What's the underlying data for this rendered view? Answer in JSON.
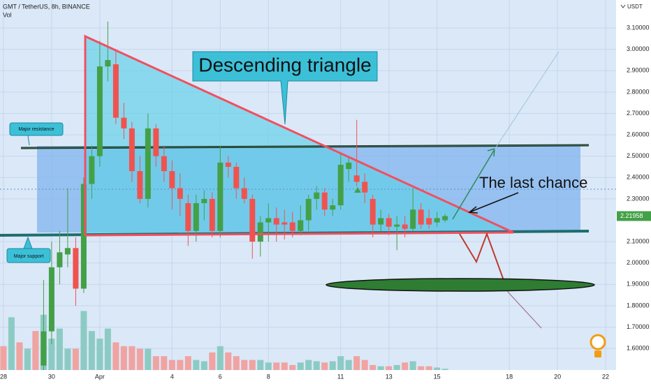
{
  "chart_data": {
    "type": "candlestick",
    "title": "GMT / TetherUS, 8h, BINANCE",
    "volume_label": "Vol",
    "currency": "USDT",
    "annotations": {
      "pattern": "Descending triangle",
      "last_chance": "The last chance",
      "resistance": "Major resistance",
      "support": "Major support"
    },
    "xlim": [
      -0.43,
      76.3
    ],
    "xticks": [
      {
        "value": 0,
        "label": "28"
      },
      {
        "value": 6,
        "label": "30"
      },
      {
        "value": 12,
        "label": "Apr"
      },
      {
        "value": 21,
        "label": "4"
      },
      {
        "value": 27,
        "label": "6"
      },
      {
        "value": 33,
        "label": "8"
      },
      {
        "value": 42,
        "label": "11"
      },
      {
        "value": 48,
        "label": "13"
      },
      {
        "value": 54,
        "label": "15"
      },
      {
        "value": 63,
        "label": "18"
      },
      {
        "value": 69,
        "label": "20"
      },
      {
        "value": 75,
        "label": "22"
      }
    ],
    "ylim": [
      1.499,
      3.231
    ],
    "yticks": [
      {
        "value": 1.6,
        "label": "1.60000"
      },
      {
        "value": 1.7,
        "label": "1.70000"
      },
      {
        "value": 1.8,
        "label": "1.80000"
      },
      {
        "value": 1.9,
        "label": "1.90000"
      },
      {
        "value": 2.0,
        "label": "2.00000"
      },
      {
        "value": 2.1,
        "label": "2.10000"
      },
      {
        "value": 2.3,
        "label": "2.30000"
      },
      {
        "value": 2.4,
        "label": "2.40000"
      },
      {
        "value": 2.5,
        "label": "2.50000"
      },
      {
        "value": 2.6,
        "label": "2.60000"
      },
      {
        "value": 2.7,
        "label": "2.70000"
      },
      {
        "value": 2.8,
        "label": "2.80000"
      },
      {
        "value": 2.9,
        "label": "2.90000"
      },
      {
        "value": 3.0,
        "label": "3.00000"
      },
      {
        "value": 3.1,
        "label": "3.10000"
      }
    ],
    "grid": true,
    "up_color": "#43a047",
    "down_color": "#ef5350",
    "x": [
      5,
      6,
      7,
      8,
      9,
      10,
      11,
      12,
      13,
      14,
      15,
      16,
      17,
      18,
      19,
      20,
      21,
      22,
      23,
      24,
      25,
      26,
      27,
      28,
      29,
      30,
      31,
      32,
      33,
      34,
      35,
      36,
      37,
      38,
      39,
      40,
      41,
      42,
      43,
      44,
      45,
      46,
      47,
      48,
      49,
      50,
      51,
      52,
      53,
      54,
      55
    ],
    "open": [
      1.52,
      1.68,
      1.98,
      2.04,
      2.07,
      1.88,
      2.37,
      2.5,
      2.92,
      2.93,
      2.68,
      2.63,
      2.43,
      2.3,
      2.63,
      2.5,
      2.43,
      2.35,
      2.28,
      2.15,
      2.28,
      2.3,
      2.15,
      2.47,
      2.45,
      2.35,
      2.3,
      2.1,
      2.19,
      2.21,
      2.19,
      2.19,
      2.15,
      2.2,
      2.3,
      2.33,
      2.25,
      2.27,
      2.44,
      2.41,
      2.38,
      2.3,
      2.18,
      2.21,
      2.17,
      2.18,
      2.16,
      2.25,
      2.21,
      2.19,
      2.2
    ],
    "high": [
      1.92,
      2.1,
      2.15,
      2.35,
      2.12,
      2.4,
      2.55,
      3.04,
      3.13,
      3.0,
      2.75,
      2.66,
      2.5,
      2.7,
      2.65,
      2.55,
      2.48,
      2.42,
      2.32,
      2.32,
      2.34,
      2.33,
      2.55,
      2.5,
      2.47,
      2.4,
      2.32,
      2.22,
      2.28,
      2.26,
      2.25,
      2.24,
      2.27,
      2.32,
      2.36,
      2.35,
      2.3,
      2.52,
      2.5,
      2.67,
      2.42,
      2.32,
      2.25,
      2.23,
      2.22,
      2.22,
      2.35,
      2.28,
      2.25,
      2.24,
      2.23
    ],
    "low": [
      1.45,
      1.62,
      1.9,
      1.98,
      1.8,
      1.86,
      2.3,
      2.45,
      2.85,
      2.65,
      2.58,
      2.38,
      2.28,
      2.26,
      2.45,
      2.38,
      2.25,
      2.22,
      2.08,
      2.1,
      2.2,
      2.12,
      2.12,
      2.4,
      2.3,
      2.28,
      2.02,
      2.03,
      2.1,
      2.1,
      2.11,
      2.12,
      2.13,
      2.15,
      2.25,
      2.22,
      2.22,
      2.25,
      2.38,
      2.36,
      2.28,
      2.12,
      2.15,
      2.13,
      2.06,
      2.12,
      2.15,
      2.16,
      2.16,
      2.17,
      2.19
    ],
    "close": [
      1.68,
      1.98,
      2.05,
      2.07,
      1.88,
      2.37,
      2.5,
      2.92,
      2.95,
      2.68,
      2.63,
      2.43,
      2.3,
      2.63,
      2.5,
      2.43,
      2.35,
      2.3,
      2.15,
      2.28,
      2.3,
      2.15,
      2.47,
      2.45,
      2.35,
      2.3,
      2.1,
      2.19,
      2.21,
      2.18,
      2.18,
      2.15,
      2.2,
      2.3,
      2.33,
      2.25,
      2.27,
      2.46,
      2.47,
      2.38,
      2.33,
      2.18,
      2.21,
      2.17,
      2.18,
      2.16,
      2.25,
      2.18,
      2.18,
      2.21,
      2.21958
    ],
    "volume": {
      "x": [
        0,
        1,
        2,
        3,
        4,
        5,
        6,
        7,
        8,
        9,
        10,
        11,
        12,
        13,
        14,
        15,
        16,
        17,
        18,
        19,
        20,
        21,
        22,
        23,
        24,
        25,
        26,
        27,
        28,
        29,
        30,
        31,
        32,
        33,
        34,
        35,
        36,
        37,
        38,
        39,
        40,
        41,
        42,
        43,
        44,
        45,
        46,
        47,
        48,
        49,
        50,
        51,
        52,
        53,
        54,
        55
      ],
      "vlim": [
        0,
        100
      ],
      "values": [
        19,
        42,
        22,
        17,
        31,
        44,
        25,
        33,
        17,
        17,
        47,
        31,
        25,
        33,
        22,
        19,
        19,
        17,
        17,
        11,
        11,
        8,
        8,
        11,
        8,
        7,
        14,
        19,
        14,
        11,
        8,
        8,
        8,
        6,
        6,
        6,
        4,
        6,
        8,
        7,
        6,
        7,
        11,
        8,
        11,
        8,
        4,
        3,
        3,
        4,
        6,
        7,
        3,
        3,
        2,
        1
      ],
      "colors": [
        "#f0a3a1",
        "#8ccbc4",
        "#f0a3a1",
        "#8ccbc4",
        "#f0a3a1",
        "#8ccbc4",
        "#8ccbc4",
        "#8ccbc4",
        "#8ccbc4",
        "#f0a3a1",
        "#8ccbc4",
        "#8ccbc4",
        "#8ccbc4",
        "#8ccbc4",
        "#f0a3a1",
        "#f0a3a1",
        "#f0a3a1",
        "#f0a3a1",
        "#8ccbc4",
        "#f0a3a1",
        "#f0a3a1",
        "#f0a3a1",
        "#f0a3a1",
        "#f0a3a1",
        "#8ccbc4",
        "#8ccbc4",
        "#f0a3a1",
        "#8ccbc4",
        "#f0a3a1",
        "#f0a3a1",
        "#f0a3a1",
        "#f0a3a1",
        "#8ccbc4",
        "#8ccbc4",
        "#f0a3a1",
        "#f0a3a1",
        "#f0a3a1",
        "#8ccbc4",
        "#8ccbc4",
        "#8ccbc4",
        "#f0a3a1",
        "#8ccbc4",
        "#8ccbc4",
        "#8ccbc4",
        "#f0a3a1",
        "#f0a3a1",
        "#f0a3a1",
        "#8ccbc4",
        "#f0a3a1",
        "#8ccbc4",
        "#f0a3a1",
        "#8ccbc4",
        "#f0a3a1",
        "#f0a3a1",
        "#8ccbc4",
        "#8ccbc4"
      ]
    }
  }
}
